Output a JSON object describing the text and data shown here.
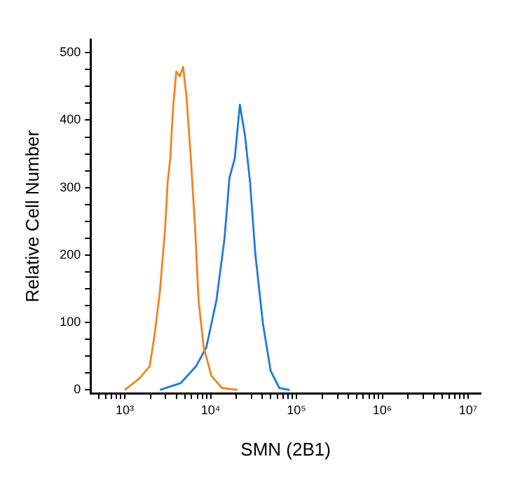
{
  "chart_data": {
    "type": "line",
    "xlabel": "SMN (2B1)",
    "ylabel": "Relative Cell Number",
    "log": "x",
    "grid": false,
    "legend": false,
    "marker": "none",
    "line_style": "solid",
    "xlim": [
      400,
      14000000
    ],
    "xticks": [
      {
        "value": 500,
        "label": null
      },
      {
        "value": 600,
        "label": null
      },
      {
        "value": 700,
        "label": null
      },
      {
        "value": 800,
        "label": null
      },
      {
        "value": 900,
        "label": null
      },
      {
        "value": 1000,
        "label": "10³"
      },
      {
        "value": 2000,
        "label": null
      },
      {
        "value": 3000,
        "label": null
      },
      {
        "value": 4000,
        "label": null
      },
      {
        "value": 5000,
        "label": null
      },
      {
        "value": 6000,
        "label": null
      },
      {
        "value": 7000,
        "label": null
      },
      {
        "value": 8000,
        "label": null
      },
      {
        "value": 9000,
        "label": null
      },
      {
        "value": 10000,
        "label": "10⁴"
      },
      {
        "value": 20000,
        "label": null
      },
      {
        "value": 30000,
        "label": null
      },
      {
        "value": 40000,
        "label": null
      },
      {
        "value": 50000,
        "label": null
      },
      {
        "value": 60000,
        "label": null
      },
      {
        "value": 70000,
        "label": null
      },
      {
        "value": 80000,
        "label": null
      },
      {
        "value": 90000,
        "label": null
      },
      {
        "value": 100000,
        "label": "10⁵"
      },
      {
        "value": 200000,
        "label": null
      },
      {
        "value": 300000,
        "label": null
      },
      {
        "value": 400000,
        "label": null
      },
      {
        "value": 500000,
        "label": null
      },
      {
        "value": 600000,
        "label": null
      },
      {
        "value": 700000,
        "label": null
      },
      {
        "value": 800000,
        "label": null
      },
      {
        "value": 900000,
        "label": null
      },
      {
        "value": 1000000,
        "label": "10⁶"
      },
      {
        "value": 2000000,
        "label": null
      },
      {
        "value": 3000000,
        "label": null
      },
      {
        "value": 4000000,
        "label": null
      },
      {
        "value": 5000000,
        "label": null
      },
      {
        "value": 6000000,
        "label": null
      },
      {
        "value": 7000000,
        "label": null
      },
      {
        "value": 8000000,
        "label": null
      },
      {
        "value": 9000000,
        "label": null
      },
      {
        "value": 10000000,
        "label": "10⁷"
      }
    ],
    "ylim": [
      -5,
      520
    ],
    "yticks": [
      0,
      {
        "value": 25,
        "label": null
      },
      {
        "value": 50,
        "label": null
      },
      {
        "value": 75,
        "label": null
      },
      100,
      {
        "value": 125,
        "label": null
      },
      {
        "value": 150,
        "label": null
      },
      {
        "value": 175,
        "label": null
      },
      200,
      {
        "value": 225,
        "label": null
      },
      {
        "value": 250,
        "label": null
      },
      {
        "value": 275,
        "label": null
      },
      300,
      {
        "value": 325,
        "label": null
      },
      {
        "value": 350,
        "label": null
      },
      {
        "value": 375,
        "label": null
      },
      400,
      {
        "value": 425,
        "label": null
      },
      {
        "value": 450,
        "label": null
      },
      {
        "value": 475,
        "label": null
      },
      500
    ],
    "series": [
      {
        "color": "#f5821f",
        "x": [
          1000,
          1480,
          1950,
          2240,
          2570,
          2950,
          3160,
          3390,
          3630,
          3980,
          4370,
          4790,
          5250,
          5890,
          6610,
          7240,
          8320,
          10200,
          13500,
          20400
        ],
        "values": [
          0,
          17,
          35,
          84,
          147,
          238,
          308,
          343,
          413,
          472,
          465,
          479,
          433,
          343,
          238,
          133,
          63,
          21,
          3,
          0
        ]
      },
      {
        "color": "#1c7bdb",
        "x": [
          2570,
          4470,
          6760,
          8910,
          11700,
          14500,
          16600,
          19100,
          21900,
          25100,
          28800,
          33100,
          40700,
          50100,
          63100,
          83200
        ],
        "values": [
          0,
          10,
          35,
          63,
          133,
          224,
          315,
          343,
          423,
          378,
          308,
          203,
          98,
          28,
          3,
          0
        ]
      }
    ]
  }
}
